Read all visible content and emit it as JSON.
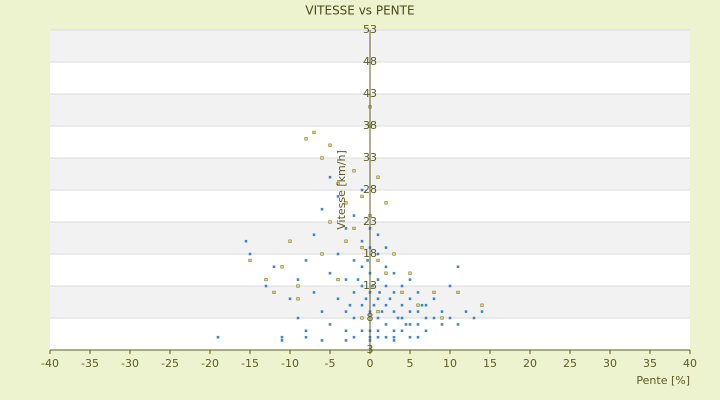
{
  "chart_data": {
    "type": "scatter",
    "title": "VITESSE vs PENTE",
    "x_label": "Pente [%]",
    "y_label": "Vitesse [km/h]",
    "xlim": [
      -40,
      40
    ],
    "xticks": [
      -40,
      -35,
      -30,
      -25,
      -20,
      -15,
      -10,
      -5,
      0,
      5,
      10,
      15,
      20,
      25,
      30,
      35,
      40
    ],
    "ylim": [
      3,
      53
    ],
    "yticks": [
      3,
      8,
      13,
      18,
      23,
      28,
      33,
      38,
      43,
      48,
      53
    ],
    "grid": true,
    "banded": true,
    "series": [
      {
        "color": "#3a87d6",
        "x": [
          -19,
          -15.5,
          -15,
          -13,
          -12,
          -11,
          -10,
          -9,
          -9,
          -8,
          -8,
          -7,
          -7,
          -6,
          -6,
          -5,
          -5,
          -5,
          -4,
          -4,
          -4,
          -3,
          -3,
          -3,
          -3,
          -2,
          -2,
          -2,
          -2,
          -2,
          -1,
          -1,
          -1,
          -1,
          -1,
          -1,
          0,
          0,
          0,
          0,
          0,
          0,
          0,
          1,
          1,
          1,
          1,
          1,
          1,
          1,
          2,
          2,
          2,
          2,
          2,
          2,
          3,
          3,
          3,
          3,
          3,
          4,
          4,
          4,
          4,
          5,
          5,
          5,
          5,
          5,
          6,
          6,
          6,
          7,
          7,
          7,
          8,
          8,
          9,
          9,
          10,
          10,
          11,
          11,
          12,
          13,
          14,
          -0.5,
          0.5,
          1.5,
          -1.5,
          2.5,
          3.5,
          0.3,
          -0.3,
          1.2,
          4.5,
          6.5,
          -2.5,
          -6,
          -8,
          -11,
          3,
          0,
          -3,
          6
        ],
        "values": [
          5,
          20,
          18,
          13,
          16,
          5,
          11,
          14,
          8,
          6,
          17,
          21,
          12,
          9,
          25,
          15,
          30,
          7,
          18,
          11,
          27,
          22,
          14,
          9,
          6,
          24,
          17,
          12,
          8,
          5,
          20,
          16,
          13,
          10,
          6,
          28,
          19,
          15,
          12,
          9,
          6,
          22,
          5,
          18,
          14,
          11,
          8,
          6,
          5,
          21,
          16,
          13,
          10,
          7,
          5,
          19,
          15,
          12,
          9,
          6,
          5,
          13,
          10,
          8,
          6,
          14,
          11,
          9,
          7,
          5,
          12,
          9,
          7,
          10,
          8,
          6,
          11,
          8,
          9,
          7,
          13,
          8,
          16,
          7,
          9,
          8,
          9,
          11,
          10,
          9,
          14,
          11,
          8,
          13,
          17,
          12,
          7,
          10,
          10,
          4.5,
          5,
          4.5,
          4.5,
          4.5,
          4.5,
          5
        ]
      },
      {
        "color": "#e2d85a",
        "x": [
          -15,
          -13,
          -12,
          -10,
          -9,
          -8,
          -7,
          -6,
          -6,
          -5,
          -5,
          -4,
          -3,
          -3,
          -2,
          -2,
          -1,
          -1,
          0,
          0,
          0,
          1,
          1,
          2,
          2,
          3,
          4,
          5,
          6,
          8,
          9,
          11,
          14,
          -11,
          -9,
          -4,
          -1,
          1
        ],
        "values": [
          17,
          14,
          12,
          20,
          11,
          36,
          37,
          33,
          18,
          23,
          35,
          29,
          26,
          20,
          31,
          22,
          27,
          19,
          38,
          41,
          24,
          30,
          17,
          26,
          15,
          18,
          12,
          15,
          10,
          12,
          8,
          12,
          10,
          16,
          13,
          14,
          8,
          9
        ]
      }
    ]
  }
}
